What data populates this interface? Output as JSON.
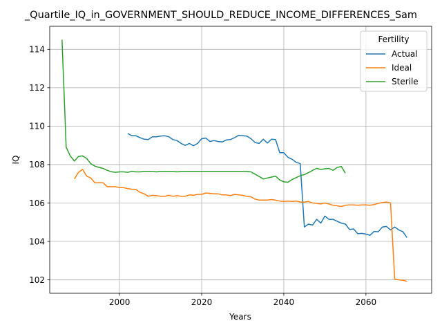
{
  "chart_data": {
    "type": "line",
    "title": "_Quartile_IQ_in_GOVERNMENT_SHOULD_REDUCE_INCOME_DIFFERENCES_Sam",
    "xlabel": "Years",
    "ylabel": "IQ",
    "xlim": [
      1983,
      2076
    ],
    "ylim": [
      101.3,
      115.2
    ],
    "x_ticks": [
      2000,
      2020,
      2040,
      2060
    ],
    "y_ticks": [
      102,
      104,
      106,
      108,
      110,
      112,
      114
    ],
    "grid": true,
    "legend": {
      "title": "Fertility",
      "placement": "top-right"
    },
    "series": [
      {
        "name": "Actual",
        "color": "#1f77b4",
        "x": [
          2002,
          2003,
          2004,
          2005,
          2006,
          2007,
          2008,
          2009,
          2010,
          2011,
          2012,
          2013,
          2014,
          2015,
          2016,
          2017,
          2018,
          2019,
          2020,
          2021,
          2022,
          2023,
          2024,
          2025,
          2026,
          2027,
          2028,
          2029,
          2030,
          2031,
          2032,
          2033,
          2034,
          2035,
          2036,
          2037,
          2038,
          2039,
          2040,
          2041,
          2042,
          2043,
          2044,
          2045,
          2046,
          2047,
          2048,
          2049,
          2050,
          2051,
          2052,
          2053,
          2054,
          2055,
          2056,
          2057,
          2058,
          2059,
          2060,
          2061,
          2062,
          2063,
          2064,
          2065,
          2066,
          2067,
          2068,
          2069,
          2070
        ],
        "values": [
          109.62,
          109.5,
          109.5,
          109.4,
          109.32,
          109.3,
          109.45,
          109.45,
          109.48,
          109.5,
          109.45,
          109.3,
          109.25,
          109.1,
          109.0,
          109.1,
          108.98,
          109.1,
          109.35,
          109.38,
          109.2,
          109.25,
          109.2,
          109.18,
          109.28,
          109.3,
          109.4,
          109.52,
          109.5,
          109.48,
          109.35,
          109.15,
          109.1,
          109.32,
          109.12,
          109.32,
          109.3,
          108.62,
          108.62,
          108.38,
          108.28,
          108.12,
          108.05,
          104.75,
          104.9,
          104.85,
          105.15,
          104.95,
          105.32,
          105.15,
          105.15,
          105.05,
          104.95,
          104.9,
          104.62,
          104.65,
          104.4,
          104.42,
          104.38,
          104.32,
          104.52,
          104.5,
          104.75,
          104.78,
          104.6,
          104.75,
          104.6,
          104.5,
          104.2
        ]
      },
      {
        "name": "Ideal",
        "color": "#ff7f0e",
        "x": [
          1989,
          1990,
          1991,
          1992,
          1993,
          1994,
          1995,
          1996,
          1997,
          1998,
          1999,
          2000,
          2001,
          2002,
          2003,
          2004,
          2005,
          2006,
          2007,
          2008,
          2009,
          2010,
          2011,
          2012,
          2013,
          2014,
          2015,
          2016,
          2017,
          2018,
          2019,
          2020,
          2021,
          2022,
          2023,
          2024,
          2025,
          2026,
          2027,
          2028,
          2029,
          2030,
          2031,
          2032,
          2033,
          2034,
          2035,
          2036,
          2037,
          2038,
          2039,
          2040,
          2041,
          2042,
          2043,
          2044,
          2045,
          2046,
          2047,
          2048,
          2049,
          2050,
          2051,
          2052,
          2053,
          2054,
          2055,
          2056,
          2057,
          2058,
          2059,
          2060,
          2061,
          2062,
          2063,
          2064,
          2065,
          2066,
          2067,
          2068,
          2069,
          2070
        ],
        "values": [
          107.25,
          107.6,
          107.75,
          107.4,
          107.3,
          107.05,
          107.05,
          107.05,
          106.85,
          106.85,
          106.85,
          106.8,
          106.8,
          106.75,
          106.72,
          106.7,
          106.55,
          106.48,
          106.35,
          106.4,
          106.38,
          106.35,
          106.35,
          106.4,
          106.35,
          106.38,
          106.35,
          106.35,
          106.42,
          106.4,
          106.45,
          106.45,
          106.52,
          106.5,
          106.48,
          106.48,
          106.42,
          106.42,
          106.38,
          106.45,
          106.42,
          106.4,
          106.35,
          106.32,
          106.2,
          106.15,
          106.15,
          106.15,
          106.18,
          106.15,
          106.1,
          106.08,
          106.1,
          106.08,
          106.1,
          106.05,
          106.05,
          106.08,
          106.0,
          105.98,
          105.95,
          106.0,
          105.95,
          105.88,
          105.85,
          105.82,
          105.88,
          105.9,
          105.9,
          105.88,
          105.9,
          105.9,
          105.88,
          105.92,
          105.98,
          106.02,
          106.05,
          106.0,
          102.05,
          102.0,
          101.98,
          101.92
        ]
      },
      {
        "name": "Sterile",
        "color": "#2ca02c",
        "x": [
          1986,
          1987,
          1988,
          1989,
          1990,
          1991,
          1992,
          1993,
          1994,
          1995,
          1996,
          1997,
          1998,
          1999,
          2000,
          2001,
          2002,
          2003,
          2004,
          2005,
          2006,
          2007,
          2008,
          2009,
          2010,
          2011,
          2012,
          2013,
          2014,
          2015,
          2016,
          2017,
          2018,
          2019,
          2020,
          2021,
          2022,
          2023,
          2024,
          2025,
          2026,
          2027,
          2028,
          2029,
          2030,
          2031,
          2032,
          2033,
          2034,
          2035,
          2036,
          2037,
          2038,
          2039,
          2040,
          2041,
          2042,
          2043,
          2044,
          2045,
          2046,
          2047,
          2048,
          2049,
          2050,
          2051,
          2052,
          2053,
          2054,
          2055
        ],
        "values": [
          114.5,
          108.9,
          108.45,
          108.18,
          108.42,
          108.45,
          108.32,
          108.05,
          107.92,
          107.85,
          107.8,
          107.7,
          107.63,
          107.6,
          107.62,
          107.62,
          107.6,
          107.65,
          107.62,
          107.62,
          107.65,
          107.65,
          107.65,
          107.62,
          107.65,
          107.65,
          107.65,
          107.65,
          107.62,
          107.65,
          107.65,
          107.65,
          107.65,
          107.65,
          107.65,
          107.65,
          107.65,
          107.65,
          107.65,
          107.65,
          107.65,
          107.65,
          107.65,
          107.65,
          107.65,
          107.65,
          107.62,
          107.5,
          107.38,
          107.25,
          107.3,
          107.35,
          107.4,
          107.2,
          107.1,
          107.08,
          107.22,
          107.32,
          107.42,
          107.48,
          107.58,
          107.7,
          107.8,
          107.75,
          107.78,
          107.8,
          107.7,
          107.85,
          107.9,
          107.55
        ]
      }
    ]
  }
}
